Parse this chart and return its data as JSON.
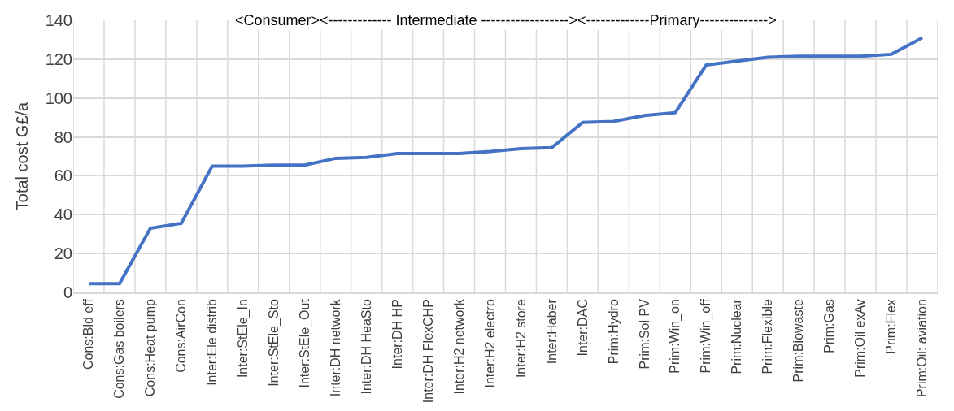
{
  "chart_data": {
    "type": "line",
    "ylabel": "Total cost G£/a",
    "categories": [
      "Cons:Bld eff",
      "Cons:Gas boilers",
      "Cons:Heat pump",
      "Cons:AirCon",
      "Inter:Ele distrib",
      "Inter:StEle_In",
      "Inter:StEle_Sto",
      "Inter:StEle_Out",
      "Inter:DH network",
      "Inter:DH HeaSto",
      "Inter:DH HP",
      "Inter:DH FlexCHP",
      "Inter:H2 network",
      "Inter:H2 electro",
      "Inter:H2 store",
      "Inter:Haber",
      "Inter:DAC",
      "Prim:Hydro",
      "Prim:Sol PV",
      "Prim:Win_on",
      "Prim:Win_off",
      "Prim:Nuclear",
      "Prim:Flexible",
      "Prim:Biowaste",
      "Prim:Gas",
      "Prim:Oil exAv",
      "Prim:Flex",
      "Prim:Oil: aviation"
    ],
    "series": [
      {
        "color": "#4472c4",
        "values": [
          4.5,
          4.5,
          33,
          35.5,
          65,
          65,
          65.5,
          65.5,
          69,
          69.5,
          71.5,
          71.5,
          71.5,
          72.5,
          74,
          74.5,
          87.5,
          88,
          91,
          92.5,
          117,
          119,
          121,
          121.5,
          121.5,
          121.5,
          122.5,
          131
        ]
      }
    ],
    "ylim": [
      0,
      140
    ],
    "yticks": [
      0,
      20,
      40,
      60,
      80,
      100,
      120,
      140
    ],
    "grid": true,
    "marker": "none",
    "line_style": "solid",
    "annotations": [
      "<Consumer><------------- Intermediate ------------------><-------------Primary-------------->"
    ]
  }
}
